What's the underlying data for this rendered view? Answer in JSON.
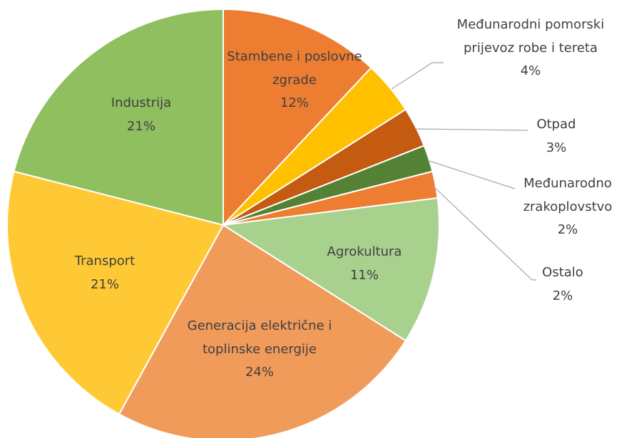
{
  "chart_data": {
    "type": "pie",
    "categories": [
      "Stambene i poslovne zgrade",
      "Međunarodni pomorski prijevoz robe i tereta",
      "Otpad",
      "Međunarodno zrakoplovstvo",
      "Ostalo",
      "Agrokultura",
      "Generacija električne i toplinske energije",
      "Transport",
      "Industrija"
    ],
    "values": [
      12,
      4,
      3,
      2,
      2,
      11,
      24,
      21,
      21
    ],
    "value_labels": [
      "12%",
      "4%",
      "3%",
      "2%",
      "2%",
      "11%",
      "24%",
      "21%",
      "21%"
    ],
    "colors": [
      "#ed7d31",
      "#ffc000",
      "#c55a11",
      "#548235",
      "#ed7d31",
      "#a9d18e",
      "#f19b5b",
      "#ffc935",
      "#8fbf5f"
    ]
  }
}
